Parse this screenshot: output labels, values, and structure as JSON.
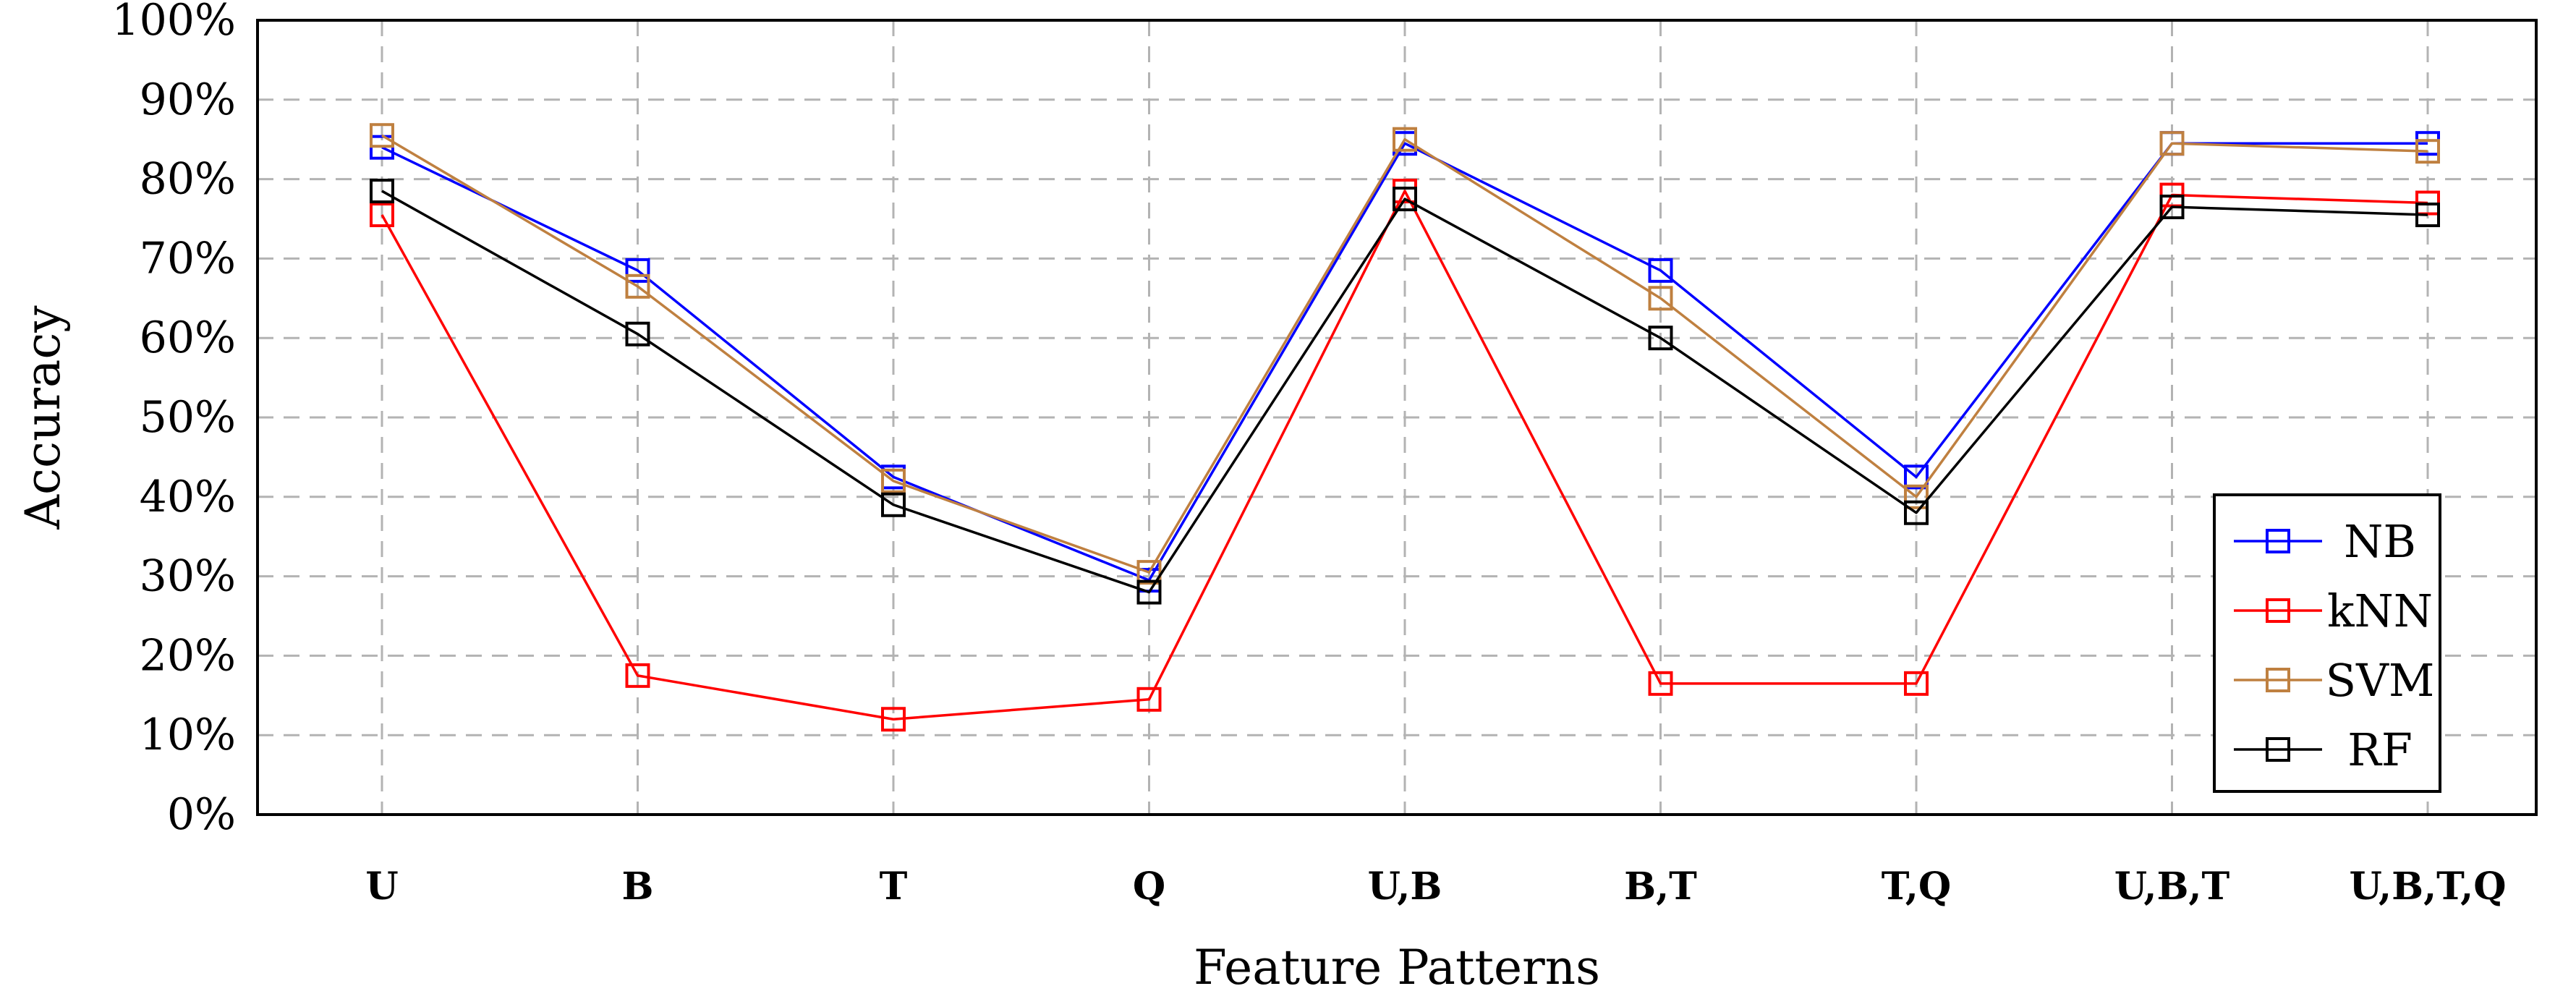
{
  "chart_data": {
    "type": "line",
    "xlabel": "Feature Patterns",
    "ylabel": "Accuracy",
    "categories": [
      "U",
      "B",
      "T",
      "Q",
      "U,B",
      "B,T",
      "T,Q",
      "U,B,T",
      "U,B,T,Q"
    ],
    "ylim": [
      0,
      100
    ],
    "yticks": [
      0,
      10,
      20,
      30,
      40,
      50,
      60,
      70,
      80,
      90,
      100
    ],
    "ytick_labels": [
      "0%",
      "10%",
      "20%",
      "30%",
      "40%",
      "50%",
      "60%",
      "70%",
      "80%",
      "90%",
      "100%"
    ],
    "grid": true,
    "legend_position": "bottom-right",
    "marker": "open-square",
    "series": [
      {
        "name": "NB",
        "color": "#0000ff",
        "values": [
          84,
          68.5,
          42.5,
          29.5,
          84.5,
          68.5,
          42.5,
          84.5,
          84.5
        ]
      },
      {
        "name": "kNN",
        "color": "#ff0000",
        "values": [
          75.5,
          17.5,
          12,
          14.5,
          78.5,
          16.5,
          16.5,
          78,
          77
        ]
      },
      {
        "name": "SVM",
        "color": "#bf8040",
        "values": [
          85.5,
          66.5,
          42,
          30.5,
          85,
          65,
          40,
          84.5,
          83.5
        ]
      },
      {
        "name": "RF",
        "color": "#000000",
        "values": [
          78.5,
          60.5,
          39,
          28,
          77.5,
          60,
          38,
          76.5,
          75.5
        ]
      }
    ]
  }
}
